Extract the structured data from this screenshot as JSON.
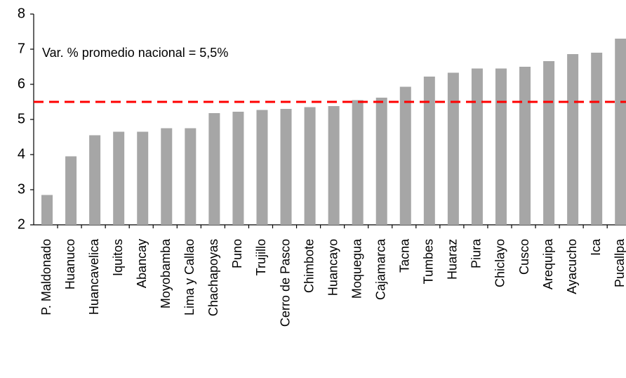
{
  "chart_data": {
    "type": "bar",
    "categories": [
      "P. Maldonado",
      "Huanuco",
      "Huancavelica",
      "Iquitos",
      "Abancay",
      "Moyobamba",
      "Lima y Callao",
      "Chachapoyas",
      "Puno",
      "Trujillo",
      "Cerro de Pasco",
      "Chimbote",
      "Huancayo",
      "Moquegua",
      "Cajamarca",
      "Tacna",
      "Tumbes",
      "Huaraz",
      "Piura",
      "Chiclayo",
      "Cusco",
      "Arequipa",
      "Ayacucho",
      "Ica",
      "Pucallpa"
    ],
    "values": [
      2.85,
      3.95,
      4.55,
      4.65,
      4.65,
      4.75,
      4.75,
      5.18,
      5.22,
      5.27,
      5.3,
      5.35,
      5.38,
      5.55,
      5.62,
      5.93,
      6.22,
      6.33,
      6.45,
      6.45,
      6.5,
      6.66,
      6.86,
      6.9,
      7.3
    ],
    "color": "#a6a6a6",
    "ylim": [
      2,
      8
    ],
    "yticks": [
      2,
      3,
      4,
      5,
      6,
      7,
      8
    ],
    "reference_line": {
      "value": 5.5,
      "label": "Var. % promedio nacional = 5,5%",
      "color": "#ff0000"
    }
  }
}
